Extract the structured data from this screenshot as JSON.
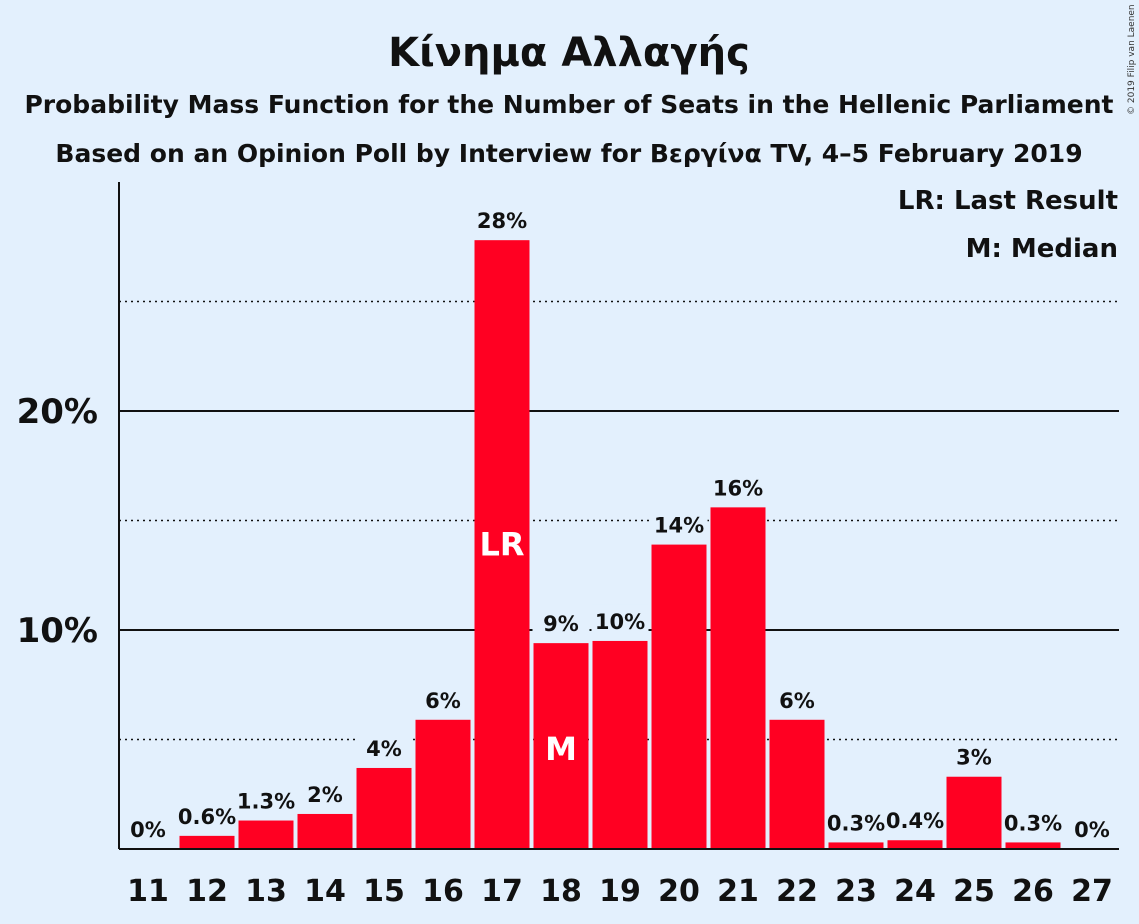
{
  "title": "Κίνημα Αλλαγής",
  "subtitle1": "Probability Mass Function for the Number of Seats in the Hellenic Parliament",
  "subtitle2": "Based on an Opinion Poll by Interview for Βεργίνα TV, 4–5 February 2019",
  "legend_lr": "LR: Last Result",
  "legend_m": "M: Median",
  "copyright": "© 2019 Filip van Laenen",
  "y_ticks": [
    {
      "value": 10,
      "label": "10%"
    },
    {
      "value": 20,
      "label": "20%"
    }
  ],
  "colors": {
    "bar": "#ff0022",
    "background": "#e3f0fd",
    "text": "#111111"
  },
  "chart_data": {
    "type": "bar",
    "title": "Κίνημα Αλλαγής",
    "xlabel": "",
    "ylabel": "",
    "ylim": [
      0,
      30
    ],
    "grid": "solid lines at 10% and 20%, dotted lines at 5%, 15%, 25%",
    "legend_placement": "top-right",
    "categories": [
      "11",
      "12",
      "13",
      "14",
      "15",
      "16",
      "17",
      "18",
      "19",
      "20",
      "21",
      "22",
      "23",
      "24",
      "25",
      "26",
      "27"
    ],
    "values": [
      0,
      0.6,
      1.3,
      1.6,
      3.7,
      5.9,
      27.8,
      9.4,
      9.5,
      13.9,
      15.6,
      5.9,
      0.3,
      0.4,
      3.3,
      0.3,
      0
    ],
    "value_labels": [
      "0%",
      "0.6%",
      "1.3%",
      "2%",
      "4%",
      "6%",
      "28%",
      "9%",
      "10%",
      "14%",
      "16%",
      "6%",
      "0.3%",
      "0.4%",
      "3%",
      "0.3%",
      "0%"
    ],
    "markers": [
      {
        "category": "17",
        "label": "LR"
      },
      {
        "category": "18",
        "label": "M"
      }
    ]
  }
}
